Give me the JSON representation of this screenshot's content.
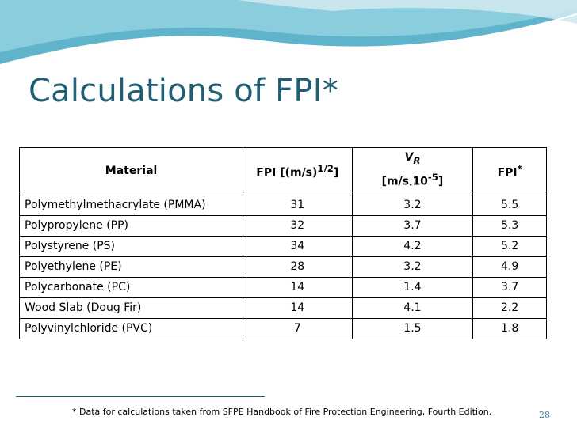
{
  "slide": {
    "title": "Calculations of FPI*",
    "footnote": "* Data for calculations taken from SFPE Handbook of Fire Protection Engineering, Fourth Edition.",
    "page_number": "28"
  },
  "table": {
    "headers": {
      "material": "Material",
      "fpi_label": "FPI [(m/s)",
      "fpi_exp": "1/2",
      "fpi_close": "]",
      "vr_v": "V",
      "vr_sub": "R",
      "vr_unit_a": "[m/s",
      "vr_dot": "·",
      "vr_unit_b": "10",
      "vr_exp": "-5",
      "vr_close": "]",
      "fpi_star": "FPI",
      "fpi_star_sup": "*"
    },
    "rows": [
      {
        "material": "Polymethylmethacrylate (PMMA)",
        "fpi": "31",
        "vr": "3.2",
        "fpi_star": "5.5"
      },
      {
        "material": "Polypropylene (PP)",
        "fpi": "32",
        "vr": "3.7",
        "fpi_star": "5.3"
      },
      {
        "material": "Polystyrene (PS)",
        "fpi": "34",
        "vr": "4.2",
        "fpi_star": "5.2"
      },
      {
        "material": "Polyethylene (PE)",
        "fpi": "28",
        "vr": "3.2",
        "fpi_star": "4.9"
      },
      {
        "material": "Polycarbonate (PC)",
        "fpi": "14",
        "vr": "1.4",
        "fpi_star": "3.7"
      },
      {
        "material": "Wood Slab (Doug Fir)",
        "fpi": "14",
        "vr": "4.1",
        "fpi_star": "2.2"
      },
      {
        "material": "Polyvinylchloride (PVC)",
        "fpi": "7",
        "vr": "1.5",
        "fpi_star": "1.8"
      }
    ]
  },
  "colors": {
    "title": "#1f5f73",
    "wave_dark": "#5fb4cc",
    "wave_light": "#cfe9f1"
  }
}
